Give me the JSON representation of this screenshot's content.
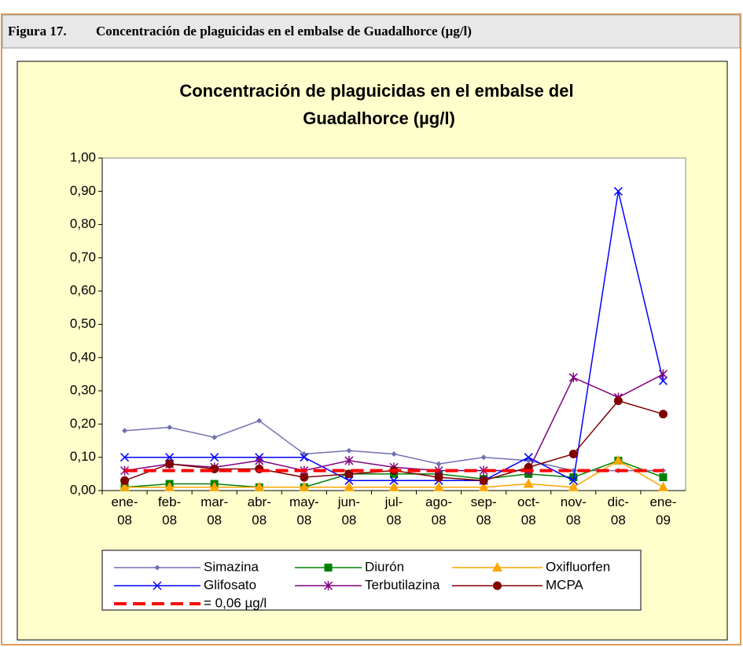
{
  "figure": {
    "number": "Figura 17.",
    "caption": "Concentración de plaguicidas en el embalse de Guadalhorce (µg/l)"
  },
  "chart_data": {
    "type": "line",
    "title": "Concentración de plaguicidas en el embalse del Guadalhorce (µg/l)",
    "categories": [
      "ene-08",
      "feb-08",
      "mar-08",
      "abr-08",
      "may-08",
      "jun-08",
      "jul-08",
      "ago-08",
      "sep-08",
      "oct-08",
      "nov-08",
      "dic-08",
      "ene-09"
    ],
    "ylim": [
      0,
      1
    ],
    "yticks": [
      {
        "value": 0,
        "label": "0,00"
      },
      {
        "value": 0.1,
        "label": "0,10"
      },
      {
        "value": 0.2,
        "label": "0,20"
      },
      {
        "value": 0.3,
        "label": "0,30"
      },
      {
        "value": 0.4,
        "label": "0,40"
      },
      {
        "value": 0.5,
        "label": "0,50"
      },
      {
        "value": 0.6,
        "label": "0,60"
      },
      {
        "value": 0.7,
        "label": "0,70"
      },
      {
        "value": 0.8,
        "label": "0,80"
      },
      {
        "value": 0.9,
        "label": "0,90"
      },
      {
        "value": 1,
        "label": "1,00"
      }
    ],
    "grid": false,
    "legend": "bottom",
    "series": [
      {
        "name": "Simazina",
        "color": "#7070b0",
        "marker": "diamond",
        "values": [
          0.18,
          0.19,
          0.16,
          0.21,
          0.11,
          0.12,
          0.11,
          0.08,
          0.1,
          0.09,
          0.06,
          0.06,
          0.06
        ]
      },
      {
        "name": "Diurón",
        "color": "#008000",
        "marker": "square",
        "values": [
          0.01,
          0.02,
          0.02,
          0.01,
          0.01,
          0.05,
          0.05,
          0.05,
          0.035,
          0.05,
          0.04,
          0.09,
          0.04
        ]
      },
      {
        "name": "Oxifluorfen",
        "color": "#ffa500",
        "marker": "triangle",
        "values": [
          0.01,
          0.01,
          0.01,
          0.01,
          0.01,
          0.01,
          0.01,
          0.01,
          0.01,
          0.02,
          0.01,
          0.09,
          0.01
        ]
      },
      {
        "name": "Glifosato",
        "color": "#0000ff",
        "marker": "x",
        "values": [
          0.1,
          0.1,
          0.1,
          0.1,
          0.1,
          0.03,
          0.03,
          0.03,
          0.03,
          0.1,
          0.03,
          0.9,
          0.33
        ]
      },
      {
        "name": "Terbutilazina",
        "color": "#800080",
        "marker": "star",
        "values": [
          0.06,
          0.08,
          0.07,
          0.09,
          0.06,
          0.09,
          0.07,
          0.06,
          0.06,
          0.06,
          0.34,
          0.28,
          0.35
        ]
      },
      {
        "name": "MCPA",
        "color": "#800000",
        "marker": "circle",
        "values": [
          0.03,
          0.08,
          0.065,
          0.065,
          0.04,
          0.05,
          0.06,
          0.04,
          0.03,
          0.07,
          0.11,
          0.27,
          0.23
        ]
      },
      {
        "name": "= 0,06  µg/l",
        "color": "#ff0000",
        "marker": "none",
        "dashed": true,
        "values": [
          0.06,
          0.06,
          0.06,
          0.06,
          0.06,
          0.06,
          0.06,
          0.06,
          0.06,
          0.06,
          0.06,
          0.06,
          0.06
        ]
      }
    ]
  }
}
